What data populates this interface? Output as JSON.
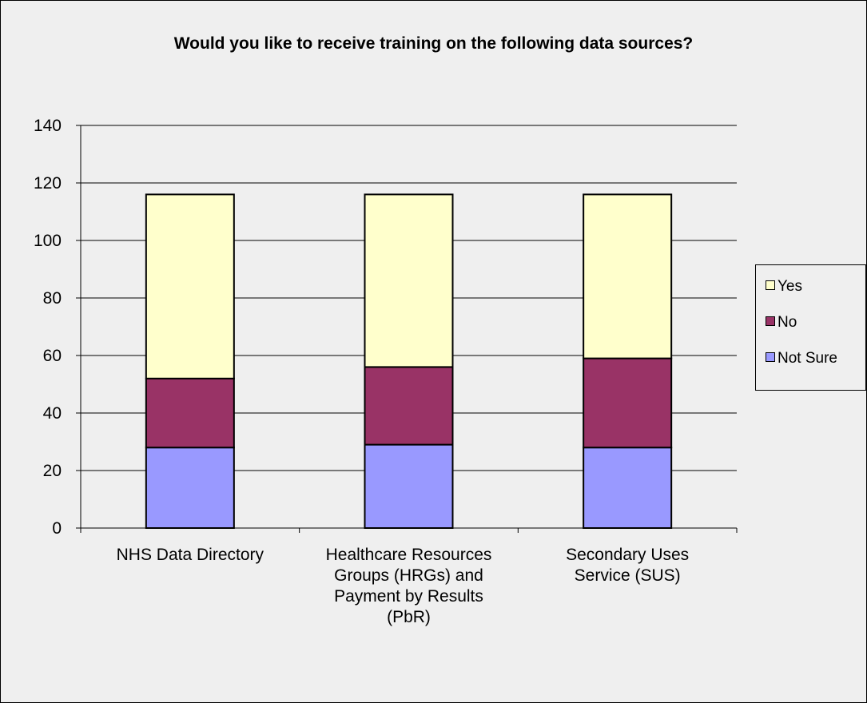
{
  "chart_data": {
    "type": "bar",
    "stacked": true,
    "title": "Would you like to receive training on the following data sources?",
    "xlabel": "",
    "ylabel": "",
    "categories": [
      [
        "NHS Data Directory"
      ],
      [
        "Healthcare Resources",
        "Groups (HRGs) and",
        "Payment by Results",
        "(PbR)"
      ],
      [
        "Secondary Uses",
        "Service (SUS)"
      ]
    ],
    "series": [
      {
        "name": "Not Sure",
        "color": "#9999ff",
        "values": [
          28,
          29,
          28
        ]
      },
      {
        "name": "No",
        "color": "#993366",
        "values": [
          24,
          27,
          31
        ]
      },
      {
        "name": "Yes",
        "color": "#ffffcc",
        "values": [
          64,
          60,
          57
        ]
      }
    ],
    "ylim": [
      0,
      140
    ],
    "yticks": [
      0,
      20,
      40,
      60,
      80,
      100,
      120,
      140
    ],
    "grid": true,
    "legend": "right"
  }
}
